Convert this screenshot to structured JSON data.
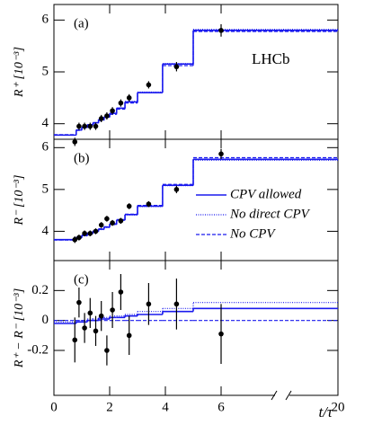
{
  "chart_data": [
    {
      "type": "errorbar",
      "panel_label": "(a)",
      "annotation": "LHCb",
      "ylabel": "R⁺ [10⁻³]",
      "ylim": [
        3.7,
        6.3
      ],
      "yticks": [
        4,
        5,
        6
      ],
      "x": [
        0.75,
        0.9,
        1.1,
        1.3,
        1.5,
        1.7,
        1.9,
        2.1,
        2.4,
        2.7,
        3.4,
        4.4,
        6.0
      ],
      "values": [
        3.65,
        3.95,
        3.95,
        3.95,
        3.95,
        4.1,
        4.15,
        4.25,
        4.4,
        4.5,
        4.75,
        5.1,
        5.8
      ],
      "errors": [
        0.08,
        0.07,
        0.07,
        0.07,
        0.07,
        0.07,
        0.07,
        0.07,
        0.07,
        0.07,
        0.07,
        0.09,
        0.12
      ],
      "color": "#000000",
      "bin_edges": [
        0,
        0.8,
        1.0,
        1.2,
        1.4,
        1.6,
        1.8,
        2.0,
        2.25,
        2.55,
        3.0,
        3.9,
        5.0,
        20
      ],
      "series": [
        {
          "name": "CPV allowed",
          "style": "solid",
          "color": "#1a1aee",
          "values": [
            3.78,
            3.88,
            3.93,
            3.98,
            4.02,
            4.08,
            4.13,
            4.2,
            4.3,
            4.42,
            4.6,
            5.15,
            5.8
          ]
        },
        {
          "name": "No direct CPV",
          "style": "dotted",
          "color": "#1a1aee",
          "values": [
            3.78,
            3.88,
            3.93,
            3.98,
            4.02,
            4.08,
            4.13,
            4.2,
            4.3,
            4.43,
            4.61,
            5.16,
            5.82
          ]
        },
        {
          "name": "No CPV",
          "style": "dashed",
          "color": "#1a1aee",
          "values": [
            3.79,
            3.87,
            3.92,
            3.97,
            4.01,
            4.06,
            4.12,
            4.18,
            4.28,
            4.4,
            4.6,
            5.12,
            5.78
          ]
        }
      ]
    },
    {
      "type": "errorbar",
      "panel_label": "(b)",
      "ylabel": "R⁻ [10⁻³]",
      "legend": "upper right",
      "ylim": [
        3.3,
        6.2
      ],
      "yticks": [
        4,
        5,
        6
      ],
      "x": [
        0.75,
        0.9,
        1.1,
        1.3,
        1.5,
        1.7,
        1.9,
        2.1,
        2.4,
        2.7,
        3.4,
        4.4,
        6.0
      ],
      "values": [
        3.8,
        3.85,
        3.95,
        3.95,
        4.0,
        4.15,
        4.3,
        4.2,
        4.25,
        4.6,
        4.65,
        5.0,
        5.85
      ],
      "errors": [
        0.08,
        0.07,
        0.07,
        0.07,
        0.07,
        0.07,
        0.07,
        0.07,
        0.07,
        0.07,
        0.07,
        0.09,
        0.12
      ],
      "color": "#000000",
      "bin_edges": [
        0,
        0.8,
        1.0,
        1.2,
        1.4,
        1.6,
        1.8,
        2.0,
        2.25,
        2.55,
        3.0,
        3.9,
        5.0,
        20
      ],
      "series": [
        {
          "name": "CPV allowed",
          "style": "solid",
          "color": "#1a1aee",
          "values": [
            3.8,
            3.85,
            3.9,
            3.95,
            4.0,
            4.05,
            4.1,
            4.17,
            4.27,
            4.4,
            4.6,
            5.1,
            5.72
          ]
        },
        {
          "name": "No direct CPV",
          "style": "dotted",
          "color": "#1a1aee",
          "values": [
            3.79,
            3.84,
            3.89,
            3.94,
            3.99,
            4.04,
            4.09,
            4.16,
            4.26,
            4.39,
            4.59,
            5.09,
            5.7
          ]
        },
        {
          "name": "No CPV",
          "style": "dashed",
          "color": "#1a1aee",
          "values": [
            3.79,
            3.86,
            3.91,
            3.96,
            4.01,
            4.06,
            4.11,
            4.18,
            4.28,
            4.41,
            4.62,
            5.12,
            5.76
          ]
        }
      ]
    },
    {
      "type": "errorbar",
      "panel_label": "(c)",
      "ylabel": "R⁺ − R⁻ [10⁻³]",
      "xlabel": "t/τ",
      "xlim": [
        0,
        20
      ],
      "xticks": [
        0,
        2,
        4,
        6,
        20
      ],
      "x_break": true,
      "ylim": [
        -0.5,
        0.4
      ],
      "yticks": [
        -0.2,
        0,
        0.2
      ],
      "x": [
        0.75,
        0.9,
        1.1,
        1.3,
        1.5,
        1.7,
        1.9,
        2.1,
        2.4,
        2.7,
        3.4,
        4.4,
        6.0
      ],
      "values": [
        -0.13,
        0.12,
        -0.05,
        0.05,
        -0.07,
        0.03,
        -0.2,
        0.07,
        0.19,
        -0.1,
        0.11,
        0.11,
        -0.09
      ],
      "errors": [
        0.15,
        0.1,
        0.1,
        0.1,
        0.1,
        0.1,
        0.1,
        0.12,
        0.12,
        0.13,
        0.14,
        0.17,
        0.2
      ],
      "color": "#000000",
      "bin_edges": [
        0,
        0.8,
        1.0,
        1.2,
        1.4,
        1.6,
        1.8,
        2.0,
        2.25,
        2.55,
        3.0,
        3.9,
        5.0,
        20
      ],
      "series": [
        {
          "name": "CPV allowed",
          "style": "solid",
          "color": "#1a1aee",
          "values": [
            -0.02,
            -0.01,
            -0.01,
            0.0,
            0.0,
            0.01,
            0.01,
            0.02,
            0.02,
            0.03,
            0.04,
            0.06,
            0.08
          ]
        },
        {
          "name": "No direct CPV",
          "style": "dotted",
          "color": "#1a1aee",
          "values": [
            -0.01,
            0.0,
            0.0,
            0.01,
            0.01,
            0.02,
            0.02,
            0.03,
            0.03,
            0.04,
            0.06,
            0.08,
            0.12
          ]
        },
        {
          "name": "No CPV",
          "style": "dashed",
          "color": "#1a1aee",
          "values": [
            0,
            0,
            0,
            0,
            0,
            0,
            0,
            0,
            0,
            0,
            0,
            0,
            0
          ]
        }
      ]
    }
  ]
}
